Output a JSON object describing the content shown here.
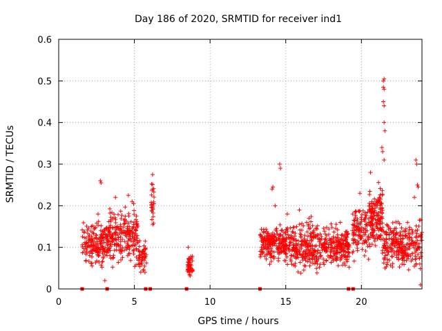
{
  "chart_data": {
    "type": "scatter",
    "title": "Day 186 of 2020, SRMTID for receiver ind1",
    "xlabel": "GPS time / hours",
    "ylabel": "SRMTID / TECUs",
    "xlim": [
      0,
      24
    ],
    "ylim": [
      0,
      0.6
    ],
    "xticks": [
      0,
      5,
      10,
      15,
      20
    ],
    "xtick_labels": [
      "0",
      "5",
      "10",
      "15",
      "20"
    ],
    "yticks": [
      0,
      0.1,
      0.2,
      0.3,
      0.4,
      0.5,
      0.6
    ],
    "ytick_labels": [
      "0",
      "0.1",
      "0.2",
      "0.3",
      "0.4",
      "0.5",
      "0.6"
    ],
    "grid": true,
    "marker": "+",
    "color": "#ff0000",
    "zero_markers": {
      "marker": "square",
      "x": [
        1.55,
        3.2,
        5.75,
        6.05,
        8.45,
        13.3,
        19.15,
        19.45
      ]
    },
    "clusters": [
      {
        "x_start": 1.55,
        "x_end": 3.2,
        "count": 170,
        "y_min": 0.04,
        "y_max": 0.16,
        "outliers": [
          [
            2.75,
            0.26
          ],
          [
            2.8,
            0.255
          ],
          [
            2.6,
            0.18
          ],
          [
            3.05,
            0.02
          ]
        ]
      },
      {
        "x_start": 3.2,
        "x_end": 5.25,
        "count": 220,
        "y_min": 0.04,
        "y_max": 0.19,
        "outliers": [
          [
            3.75,
            0.22
          ],
          [
            4.6,
            0.225
          ],
          [
            4.85,
            0.21
          ],
          [
            4.95,
            0.205
          ]
        ]
      },
      {
        "x_start": 5.25,
        "x_end": 5.8,
        "count": 50,
        "y_min": 0.03,
        "y_max": 0.12,
        "outliers": [
          [
            5.7,
            0.04
          ]
        ]
      },
      {
        "x_start": 6.1,
        "x_end": 6.3,
        "count": 25,
        "y_min": 0.13,
        "y_max": 0.27,
        "outliers": [
          [
            6.2,
            0.275
          ]
        ]
      },
      {
        "x_start": 8.5,
        "x_end": 8.85,
        "count": 45,
        "y_min": 0.02,
        "y_max": 0.08,
        "outliers": [
          [
            8.55,
            0.1
          ]
        ]
      },
      {
        "x_start": 13.3,
        "x_end": 15.0,
        "count": 200,
        "y_min": 0.05,
        "y_max": 0.15,
        "outliers": [
          [
            14.1,
            0.24
          ],
          [
            14.15,
            0.245
          ],
          [
            14.3,
            0.2
          ],
          [
            14.6,
            0.3
          ],
          [
            14.65,
            0.29
          ]
        ]
      },
      {
        "x_start": 15.0,
        "x_end": 17.5,
        "count": 260,
        "y_min": 0.02,
        "y_max": 0.16,
        "outliers": [
          [
            15.9,
            0.19
          ],
          [
            15.1,
            0.18
          ]
        ]
      },
      {
        "x_start": 17.5,
        "x_end": 19.2,
        "count": 190,
        "y_min": 0.04,
        "y_max": 0.15,
        "outliers": [
          [
            18.6,
            0.16
          ]
        ]
      },
      {
        "x_start": 19.4,
        "x_end": 20.5,
        "count": 110,
        "y_min": 0.05,
        "y_max": 0.21,
        "outliers": [
          [
            19.9,
            0.23
          ]
        ]
      },
      {
        "x_start": 20.5,
        "x_end": 21.4,
        "count": 150,
        "y_min": 0.07,
        "y_max": 0.25,
        "outliers": [
          [
            20.6,
            0.28
          ],
          [
            21.35,
            0.34
          ],
          [
            21.4,
            0.33
          ],
          [
            21.45,
            0.5
          ],
          [
            21.5,
            0.505
          ],
          [
            21.45,
            0.485
          ],
          [
            21.5,
            0.48
          ],
          [
            21.45,
            0.45
          ],
          [
            21.5,
            0.44
          ],
          [
            21.5,
            0.4
          ],
          [
            21.55,
            0.38
          ],
          [
            21.5,
            0.31
          ]
        ]
      },
      {
        "x_start": 21.4,
        "x_end": 24.0,
        "count": 260,
        "y_min": 0.03,
        "y_max": 0.16,
        "outliers": [
          [
            23.6,
            0.31
          ],
          [
            23.65,
            0.3
          ],
          [
            23.7,
            0.25
          ],
          [
            23.75,
            0.245
          ],
          [
            23.5,
            0.22
          ],
          [
            23.9,
            0.01
          ]
        ]
      }
    ]
  }
}
